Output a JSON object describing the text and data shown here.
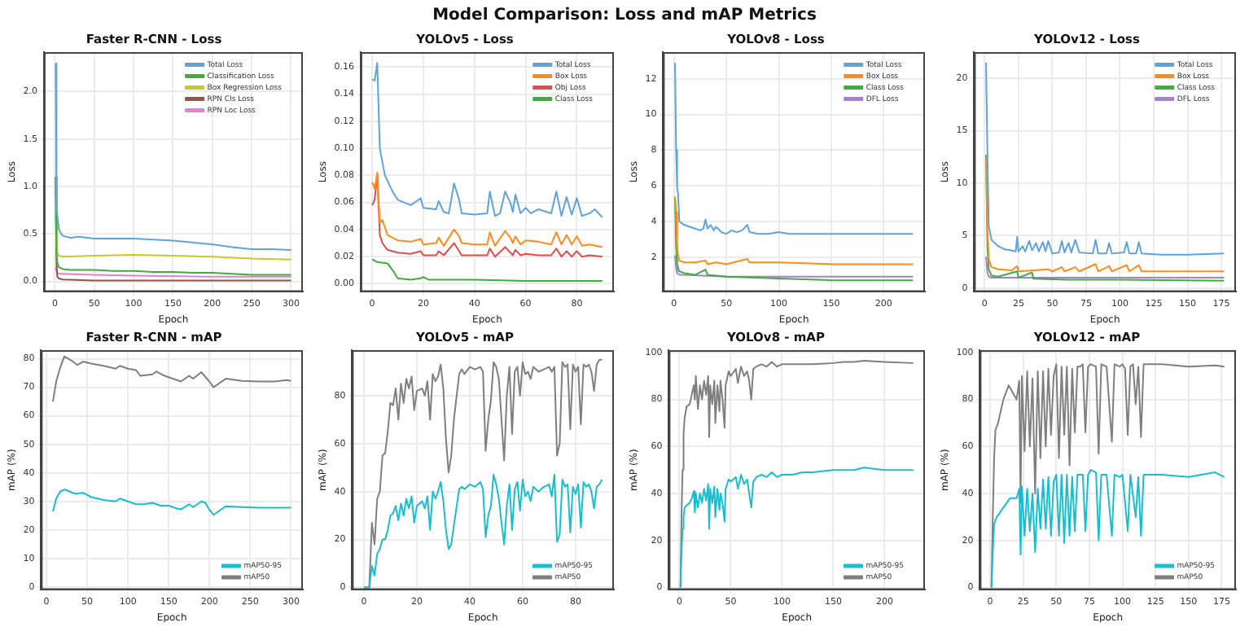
{
  "chart_data": [
    {
      "type": "line",
      "title": "Faster R-CNN - Loss",
      "xlabel": "Epoch",
      "ylabel": "Loss",
      "annotations": [
        "Model Comparison: Loss and mAP Metrics"
      ],
      "grid": true,
      "legend": "top right",
      "xlim": [
        -14,
        315
      ],
      "xticks": [
        0,
        50,
        100,
        150,
        200,
        250,
        300
      ],
      "ylim": [
        -0.11,
        2.415
      ],
      "yticks": [
        {
          "value": 0,
          "label": "0.0"
        },
        0.5,
        {
          "value": 1,
          "label": "1.0"
        },
        1.5,
        {
          "value": 2,
          "label": "2.0"
        }
      ],
      "series": [
        {
          "name": "Total Loss",
          "color": "#5ea3d9",
          "x": [
            1,
            2,
            3,
            5,
            8,
            10,
            20,
            30,
            50,
            75,
            100,
            125,
            150,
            175,
            200,
            225,
            250,
            275,
            300
          ],
          "values": [
            2.3,
            0.75,
            0.7,
            0.55,
            0.5,
            0.48,
            0.46,
            0.47,
            0.45,
            0.45,
            0.45,
            0.44,
            0.43,
            0.41,
            0.39,
            0.36,
            0.34,
            0.34,
            0.33
          ]
        },
        {
          "name": "Classification Loss",
          "color": "#3cae3c",
          "x": [
            1,
            2,
            3,
            5,
            10,
            20,
            50,
            75,
            100,
            125,
            150,
            175,
            200,
            225,
            250,
            275,
            300
          ],
          "values": [
            1.1,
            0.3,
            0.2,
            0.15,
            0.13,
            0.12,
            0.12,
            0.11,
            0.11,
            0.1,
            0.1,
            0.09,
            0.09,
            0.08,
            0.07,
            0.07,
            0.07
          ]
        },
        {
          "name": "Box Regression Loss",
          "color": "#c8c828",
          "x": [
            1,
            2,
            3,
            5,
            10,
            50,
            100,
            150,
            200,
            250,
            300
          ],
          "values": [
            0.7,
            0.35,
            0.3,
            0.27,
            0.26,
            0.27,
            0.28,
            0.27,
            0.26,
            0.24,
            0.23
          ]
        },
        {
          "name": "RPN Cls Loss",
          "color": "#8c564b",
          "x": [
            1,
            2,
            3,
            5,
            10,
            50,
            100,
            200,
            300
          ],
          "values": [
            1.1,
            0.2,
            0.05,
            0.03,
            0.02,
            0.01,
            0.01,
            0.01,
            0.01
          ]
        },
        {
          "name": "RPN Loc Loss",
          "color": "#e680cc",
          "x": [
            1,
            2,
            3,
            5,
            10,
            50,
            100,
            200,
            300
          ],
          "values": [
            0.15,
            0.1,
            0.09,
            0.08,
            0.08,
            0.07,
            0.06,
            0.05,
            0.05
          ]
        }
      ]
    },
    {
      "type": "line",
      "title": "YOLOv5 - Loss",
      "xlabel": "Epoch",
      "ylabel": "Loss",
      "grid": true,
      "legend": "top right",
      "xlim": [
        -4.5,
        94.5
      ],
      "xticks": [
        0,
        20,
        40,
        60,
        80
      ],
      "ylim": [
        -0.006,
        0.171
      ],
      "yticks": [
        {
          "value": 0,
          "label": "0.00"
        },
        0.02,
        0.04,
        0.06,
        0.08,
        {
          "value": 0.1,
          "label": "0.10"
        },
        0.12,
        0.14,
        0.16
      ],
      "series": [
        {
          "name": "Total Loss",
          "color": "#5ea3d9",
          "x": [
            0,
            1,
            2,
            3,
            5,
            8,
            10,
            15,
            19,
            20,
            25,
            26,
            28,
            30,
            32,
            34,
            35,
            40,
            45,
            46,
            48,
            50,
            52,
            54,
            55,
            56,
            58,
            60,
            62,
            65,
            70,
            72,
            74,
            76,
            78,
            80,
            82,
            85,
            87,
            90
          ],
          "values": [
            0.151,
            0.15,
            0.163,
            0.1,
            0.08,
            0.068,
            0.062,
            0.058,
            0.063,
            0.056,
            0.055,
            0.061,
            0.053,
            0.052,
            0.074,
            0.062,
            0.052,
            0.051,
            0.052,
            0.068,
            0.05,
            0.052,
            0.068,
            0.06,
            0.053,
            0.066,
            0.052,
            0.056,
            0.052,
            0.055,
            0.052,
            0.068,
            0.05,
            0.064,
            0.051,
            0.063,
            0.05,
            0.052,
            0.055,
            0.049
          ]
        },
        {
          "name": "Box Loss",
          "color": "#ff8c1a",
          "x": [
            0,
            1,
            2,
            3,
            4,
            6,
            10,
            15,
            19,
            20,
            25,
            26,
            28,
            32,
            34,
            35,
            40,
            45,
            46,
            48,
            52,
            54,
            55,
            56,
            58,
            60,
            65,
            70,
            72,
            74,
            76,
            78,
            80,
            82,
            85,
            90
          ],
          "values": [
            0.075,
            0.07,
            0.082,
            0.045,
            0.047,
            0.036,
            0.032,
            0.031,
            0.033,
            0.029,
            0.03,
            0.034,
            0.028,
            0.04,
            0.035,
            0.03,
            0.029,
            0.029,
            0.038,
            0.028,
            0.039,
            0.034,
            0.03,
            0.035,
            0.029,
            0.032,
            0.031,
            0.029,
            0.038,
            0.029,
            0.036,
            0.029,
            0.035,
            0.028,
            0.029,
            0.027
          ]
        },
        {
          "name": "Obj Loss",
          "color": "#e34a4a",
          "x": [
            0,
            1,
            2,
            3,
            4,
            6,
            10,
            15,
            19,
            20,
            25,
            26,
            28,
            32,
            34,
            35,
            40,
            45,
            46,
            48,
            52,
            54,
            55,
            56,
            58,
            60,
            65,
            70,
            72,
            74,
            76,
            78,
            80,
            82,
            85,
            90
          ],
          "values": [
            0.058,
            0.062,
            0.081,
            0.036,
            0.03,
            0.025,
            0.023,
            0.022,
            0.024,
            0.021,
            0.021,
            0.024,
            0.021,
            0.03,
            0.024,
            0.021,
            0.021,
            0.021,
            0.026,
            0.02,
            0.027,
            0.023,
            0.021,
            0.025,
            0.021,
            0.022,
            0.021,
            0.021,
            0.026,
            0.02,
            0.024,
            0.02,
            0.024,
            0.02,
            0.021,
            0.02
          ]
        },
        {
          "name": "Class Loss",
          "color": "#3cae3c",
          "x": [
            0,
            2,
            6,
            8,
            10,
            15,
            19,
            20,
            22,
            40,
            60,
            90
          ],
          "values": [
            0.018,
            0.016,
            0.015,
            0.01,
            0.004,
            0.003,
            0.004,
            0.005,
            0.003,
            0.003,
            0.002,
            0.002
          ]
        }
      ]
    },
    {
      "type": "line",
      "title": "YOLOv8 - Loss",
      "xlabel": "Epoch",
      "ylabel": "Loss",
      "grid": true,
      "legend": "top right",
      "xlim": [
        -10.4,
        239.4
      ],
      "xticks": [
        0,
        50,
        100,
        150,
        200
      ],
      "ylim": [
        0.05,
        13.5
      ],
      "yticks": [
        2,
        4,
        6,
        8,
        10,
        12
      ],
      "series": [
        {
          "name": "Total Loss",
          "color": "#5ea3d9",
          "x": [
            1,
            2,
            3,
            4,
            5,
            10,
            15,
            20,
            25,
            28,
            30,
            32,
            35,
            38,
            40,
            42,
            45,
            50,
            55,
            60,
            65,
            70,
            72,
            80,
            90,
            100,
            110,
            130,
            150,
            180,
            200,
            228
          ],
          "values": [
            12.9,
            8,
            5.9,
            5.5,
            4,
            3.8,
            3.7,
            3.6,
            3.5,
            3.6,
            4.1,
            3.6,
            3.8,
            3.5,
            3.7,
            3.6,
            3.4,
            3.3,
            3.5,
            3.4,
            3.5,
            3.8,
            3.4,
            3.3,
            3.3,
            3.4,
            3.3,
            3.3,
            3.3,
            3.3,
            3.3,
            3.3
          ]
        },
        {
          "name": "Box Loss",
          "color": "#ff8c1a",
          "x": [
            1,
            2,
            3,
            5,
            10,
            20,
            30,
            32,
            40,
            50,
            70,
            72,
            100,
            150,
            228
          ],
          "values": [
            5.4,
            4.5,
            2.4,
            1.8,
            1.7,
            1.7,
            1.8,
            1.6,
            1.7,
            1.6,
            1.9,
            1.7,
            1.7,
            1.6,
            1.6
          ]
        },
        {
          "name": "Class Loss",
          "color": "#3cae3c",
          "x": [
            1,
            2,
            3,
            5,
            10,
            20,
            30,
            32,
            50,
            100,
            150,
            228
          ],
          "values": [
            5.3,
            2.6,
            1.6,
            1.2,
            1.1,
            1,
            1.3,
            1,
            0.9,
            0.8,
            0.7,
            0.7
          ]
        },
        {
          "name": "DFL Loss",
          "color": "#a57fd0",
          "x": [
            1,
            2,
            3,
            5,
            10,
            50,
            100,
            150,
            228
          ],
          "values": [
            2.1,
            1.4,
            1.1,
            1,
            1,
            0.9,
            0.9,
            0.9,
            0.9
          ]
        }
      ]
    },
    {
      "type": "line",
      "title": "YOLOv12 - Loss",
      "xlabel": "Epoch",
      "ylabel": "Loss",
      "grid": true,
      "legend": "top right",
      "xlim": [
        -7.8,
        185.8
      ],
      "xticks": [
        0,
        25,
        50,
        75,
        100,
        125,
        150,
        175
      ],
      "ylim": [
        -0.35,
        22.5
      ],
      "yticks": [
        0,
        5,
        10,
        15,
        20
      ],
      "series": [
        {
          "name": "Total Loss",
          "color": "#5ea3d9",
          "x": [
            1,
            2,
            3,
            5,
            10,
            15,
            20,
            23,
            24,
            25,
            28,
            30,
            33,
            35,
            38,
            40,
            43,
            45,
            47,
            50,
            55,
            57,
            59,
            62,
            64,
            67,
            70,
            80,
            82,
            84,
            90,
            92,
            94,
            103,
            105,
            107,
            112,
            114,
            116,
            130,
            150,
            177
          ],
          "values": [
            21.5,
            13,
            6,
            4.6,
            4,
            3.7,
            3.6,
            3.5,
            4.9,
            3.5,
            4,
            3.5,
            4.5,
            3.6,
            4.3,
            3.5,
            4.4,
            3.5,
            4.5,
            3.3,
            3.4,
            4.5,
            3.4,
            4.3,
            3.4,
            4.6,
            3.4,
            3.3,
            4.6,
            3.3,
            3.3,
            4.3,
            3.3,
            3.4,
            4.4,
            3.3,
            3.3,
            4.4,
            3.3,
            3.2,
            3.2,
            3.3
          ]
        },
        {
          "name": "Box Loss",
          "color": "#ff8c1a",
          "x": [
            1,
            2,
            3,
            5,
            10,
            20,
            24,
            25,
            47,
            50,
            57,
            59,
            67,
            70,
            82,
            84,
            92,
            94,
            105,
            107,
            114,
            116,
            150,
            177
          ],
          "values": [
            12.5,
            6,
            2.8,
            2,
            1.8,
            1.7,
            2.1,
            1.6,
            1.8,
            1.6,
            2,
            1.6,
            2,
            1.6,
            2.3,
            1.6,
            2.1,
            1.6,
            2.2,
            1.6,
            2.2,
            1.6,
            1.6,
            1.6
          ]
        },
        {
          "name": "Class Loss",
          "color": "#3cae3c",
          "x": [
            1,
            2,
            3,
            5,
            10,
            24,
            25,
            35,
            36,
            60,
            100,
            177
          ],
          "values": [
            12.7,
            4,
            1.8,
            1.2,
            1.1,
            1.6,
            1,
            1.5,
            0.9,
            0.8,
            0.8,
            0.7
          ]
        },
        {
          "name": "DFL Loss",
          "color": "#a57fd0",
          "x": [
            1,
            2,
            3,
            5,
            20,
            100,
            177
          ],
          "values": [
            3,
            1.5,
            1.1,
            1,
            1,
            1,
            1
          ]
        }
      ]
    },
    {
      "type": "line",
      "title": "Faster R-CNN - mAP",
      "xlabel": "Epoch",
      "ylabel": "mAP (%)",
      "grid": true,
      "legend": "bottom right",
      "xlim": [
        -6.6,
        314.6
      ],
      "xticks": [
        0,
        50,
        100,
        150,
        200,
        250,
        300
      ],
      "ylim": [
        -1,
        83
      ],
      "yticks": [
        0,
        10,
        20,
        30,
        40,
        50,
        60,
        70,
        80
      ],
      "series": [
        {
          "name": "mAP50-95",
          "color": "#17becf",
          "x": [
            8,
            12,
            17,
            22,
            28,
            35,
            45,
            55,
            70,
            85,
            90,
            100,
            110,
            120,
            130,
            140,
            150,
            160,
            165,
            175,
            180,
            190,
            195,
            200,
            205,
            220,
            240,
            260,
            280,
            300
          ],
          "values": [
            26.5,
            31,
            33.5,
            34.2,
            33.5,
            32.7,
            33,
            31.5,
            30.5,
            30,
            31,
            30,
            29,
            29,
            29.5,
            28.5,
            28.5,
            27.5,
            27.2,
            29,
            28,
            30,
            29.5,
            27,
            25.3,
            28.3,
            28,
            27.8,
            27.8,
            27.8
          ]
        },
        {
          "name": "mAP50",
          "color": "#7f7f7f",
          "x": [
            8,
            12,
            17,
            22,
            30,
            38,
            45,
            55,
            70,
            85,
            90,
            100,
            110,
            115,
            130,
            135,
            145,
            155,
            165,
            175,
            180,
            190,
            200,
            205,
            220,
            240,
            260,
            280,
            295,
            300
          ],
          "values": [
            65,
            72,
            77,
            80.8,
            79.5,
            77.8,
            79,
            78.3,
            77.5,
            76.5,
            77.5,
            76.5,
            76,
            74,
            74.5,
            75.5,
            74,
            73,
            72,
            74,
            73,
            75.3,
            72,
            70,
            73,
            72.2,
            72,
            72,
            72.5,
            72.2
          ]
        }
      ]
    },
    {
      "type": "line",
      "title": "YOLOv5 - mAP",
      "xlabel": "Epoch",
      "ylabel": "mAP (%)",
      "grid": true,
      "legend": "bottom right",
      "xlim": [
        -4.5,
        94.5
      ],
      "xticks": [
        0,
        20,
        40,
        60,
        80
      ],
      "ylim": [
        -1,
        99
      ],
      "yticks": [
        0,
        20,
        40,
        60,
        80
      ],
      "series": [
        {
          "name": "mAP50-95",
          "color": "#17becf",
          "x": [
            0,
            2,
            3,
            4,
            5,
            6,
            7,
            8,
            9,
            10,
            11,
            12,
            13,
            14,
            15,
            16,
            17,
            18,
            19,
            20,
            22,
            23,
            24,
            25,
            26,
            27,
            28,
            29,
            30,
            31,
            32,
            33,
            34,
            36,
            37,
            38,
            40,
            42,
            44,
            45,
            46,
            47,
            48,
            49,
            50,
            51,
            52,
            53,
            54,
            55,
            56,
            57,
            58,
            59,
            60,
            61,
            62,
            63,
            64,
            66,
            68,
            70,
            71,
            72,
            73,
            74,
            75,
            76,
            77,
            78,
            79,
            80,
            81,
            82,
            83,
            84,
            85,
            86,
            87,
            88,
            89,
            90
          ],
          "values": [
            0,
            0,
            9,
            5,
            14,
            16,
            20,
            20,
            24,
            30,
            31,
            34,
            28,
            35,
            30,
            37,
            33,
            38,
            27,
            34,
            36,
            33,
            38,
            24,
            40,
            37,
            40,
            44,
            36,
            24,
            16,
            18,
            26,
            41,
            42,
            41,
            43,
            42,
            44,
            41,
            21,
            30,
            34,
            47,
            43,
            37,
            27,
            18,
            34,
            43,
            24,
            41,
            44,
            32,
            45,
            38,
            40,
            36,
            42,
            40,
            42,
            43,
            38,
            47,
            19,
            22,
            45,
            42,
            43,
            23,
            42,
            39,
            43,
            25,
            44,
            42,
            43,
            40,
            33,
            42,
            43,
            45
          ]
        },
        {
          "name": "mAP50",
          "color": "#7f7f7f",
          "x": [
            0,
            2,
            3,
            4,
            5,
            6,
            7,
            8,
            9,
            10,
            11,
            12,
            13,
            14,
            15,
            16,
            17,
            18,
            19,
            20,
            22,
            23,
            24,
            25,
            26,
            27,
            28,
            29,
            30,
            31,
            32,
            33,
            34,
            36,
            37,
            38,
            40,
            42,
            44,
            45,
            46,
            47,
            48,
            49,
            50,
            51,
            52,
            53,
            54,
            55,
            56,
            57,
            58,
            59,
            60,
            61,
            62,
            63,
            64,
            66,
            68,
            70,
            71,
            72,
            73,
            74,
            75,
            76,
            77,
            78,
            79,
            80,
            81,
            82,
            83,
            84,
            85,
            86,
            87,
            88,
            89,
            90
          ],
          "values": [
            0,
            0,
            27,
            18,
            37,
            40,
            55,
            56,
            65,
            77,
            76,
            83,
            70,
            85,
            77,
            87,
            83,
            88,
            74,
            82,
            83,
            80,
            86,
            70,
            89,
            86,
            88,
            93,
            83,
            62,
            48,
            55,
            70,
            89,
            91,
            89,
            92,
            91,
            92,
            90,
            57,
            70,
            78,
            94,
            92,
            87,
            70,
            53,
            80,
            92,
            64,
            90,
            92,
            80,
            94,
            89,
            90,
            87,
            92,
            90,
            91,
            92,
            90,
            92,
            55,
            60,
            94,
            92,
            93,
            66,
            93,
            90,
            92,
            68,
            93,
            92,
            93,
            90,
            82,
            93,
            95,
            95
          ]
        }
      ]
    },
    {
      "type": "line",
      "title": "YOLOv8 - mAP",
      "xlabel": "Epoch",
      "ylabel": "mAP (%)",
      "grid": true,
      "legend": "bottom right",
      "xlim": [
        -10.4,
        239.4
      ],
      "xticks": [
        0,
        50,
        100,
        150,
        200
      ],
      "ylim": [
        -1,
        101
      ],
      "yticks": [
        0,
        20,
        40,
        60,
        80,
        100
      ],
      "series": [
        {
          "name": "mAP50-95",
          "color": "#17becf",
          "x": [
            1,
            2,
            3,
            4,
            5,
            7,
            10,
            12,
            14,
            15,
            16,
            18,
            20,
            22,
            24,
            26,
            28,
            29,
            30,
            32,
            34,
            35,
            37,
            39,
            40,
            42,
            44,
            45,
            48,
            50,
            55,
            57,
            60,
            63,
            66,
            68,
            70,
            72,
            75,
            80,
            85,
            90,
            95,
            100,
            110,
            120,
            130,
            150,
            160,
            170,
            180,
            200,
            228
          ],
          "values": [
            0,
            15,
            25,
            30,
            34,
            35,
            36,
            38,
            41,
            32,
            40,
            34,
            40,
            36,
            42,
            37,
            44,
            25,
            42,
            36,
            43,
            30,
            42,
            33,
            40,
            36,
            28,
            42,
            46,
            45,
            47,
            42,
            48,
            44,
            46,
            40,
            34,
            45,
            47,
            48,
            47,
            49,
            47,
            48,
            48,
            49,
            49,
            50,
            50,
            50,
            51,
            50,
            50
          ]
        },
        {
          "name": "mAP50",
          "color": "#7f7f7f",
          "x": [
            1,
            2,
            3,
            4,
            5,
            7,
            10,
            12,
            14,
            15,
            16,
            18,
            20,
            22,
            24,
            26,
            28,
            29,
            30,
            32,
            34,
            35,
            37,
            39,
            40,
            42,
            44,
            45,
            48,
            50,
            55,
            57,
            60,
            63,
            66,
            68,
            70,
            72,
            75,
            80,
            85,
            90,
            95,
            100,
            110,
            120,
            130,
            150,
            160,
            170,
            180,
            200,
            228
          ],
          "values": [
            0,
            30,
            50,
            65,
            72,
            77,
            78,
            82,
            86,
            80,
            90,
            76,
            86,
            80,
            88,
            82,
            90,
            64,
            86,
            78,
            88,
            70,
            86,
            75,
            88,
            80,
            68,
            86,
            92,
            90,
            93,
            87,
            94,
            90,
            92,
            88,
            80,
            93,
            94,
            95,
            94,
            96,
            94,
            95,
            95,
            95,
            95,
            95.5,
            96,
            96,
            96.5,
            96,
            95.5
          ]
        }
      ]
    },
    {
      "type": "line",
      "title": "YOLOv12 - mAP",
      "xlabel": "Epoch",
      "ylabel": "mAP (%)",
      "grid": true,
      "legend": "bottom right",
      "xlim": [
        -7.8,
        185.8
      ],
      "xticks": [
        0,
        25,
        50,
        75,
        100,
        125,
        150,
        175
      ],
      "ylim": [
        -1,
        101
      ],
      "yticks": [
        0,
        20,
        40,
        60,
        80,
        100
      ],
      "series": [
        {
          "name": "mAP50-95",
          "color": "#17becf",
          "x": [
            1,
            2,
            3,
            5,
            10,
            15,
            20,
            22,
            23,
            24,
            26,
            28,
            30,
            32,
            34,
            36,
            38,
            40,
            42,
            44,
            46,
            48,
            50,
            52,
            54,
            56,
            58,
            60,
            62,
            64,
            66,
            70,
            72,
            74,
            76,
            80,
            82,
            84,
            88,
            92,
            94,
            98,
            100,
            104,
            106,
            110,
            112,
            114,
            116,
            130,
            150,
            170,
            177
          ],
          "values": [
            0,
            15,
            27,
            30,
            34,
            38,
            38,
            42,
            14,
            43,
            22,
            42,
            24,
            40,
            15,
            42,
            25,
            46,
            25,
            47,
            22,
            45,
            48,
            22,
            48,
            19,
            48,
            22,
            47,
            24,
            48,
            48,
            24,
            48,
            50,
            49,
            20,
            48,
            48,
            22,
            48,
            47,
            48,
            24,
            48,
            30,
            47,
            22,
            48,
            48,
            47,
            49,
            47
          ]
        },
        {
          "name": "mAP50",
          "color": "#7f7f7f",
          "x": [
            1,
            2,
            3,
            4,
            6,
            10,
            14,
            18,
            20,
            22,
            23,
            24,
            26,
            28,
            30,
            32,
            34,
            36,
            38,
            40,
            42,
            44,
            46,
            48,
            50,
            52,
            54,
            56,
            58,
            60,
            62,
            64,
            66,
            68,
            70,
            72,
            74,
            76,
            80,
            82,
            84,
            88,
            92,
            94,
            98,
            100,
            102,
            104,
            106,
            108,
            110,
            112,
            114,
            116,
            130,
            150,
            170,
            177
          ],
          "values": [
            0,
            30,
            55,
            67,
            70,
            80,
            86,
            82,
            80,
            88,
            36,
            90,
            58,
            92,
            60,
            89,
            40,
            92,
            55,
            92,
            60,
            93,
            65,
            90,
            95,
            55,
            94,
            65,
            94,
            52,
            93,
            66,
            94,
            94,
            95,
            66,
            94,
            95,
            94,
            57,
            95,
            94,
            62,
            95,
            94,
            95,
            93,
            65,
            94,
            95,
            78,
            94,
            64,
            95,
            95,
            94,
            94.5,
            94
          ]
        }
      ]
    }
  ]
}
